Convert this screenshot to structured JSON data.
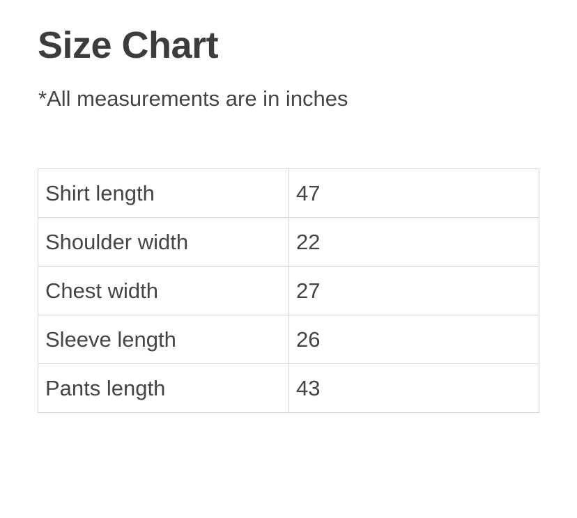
{
  "title": "Size Chart",
  "note": "*All measurements are in inches",
  "rows": [
    {
      "label": "Shirt length",
      "value": "47"
    },
    {
      "label": "Shoulder width",
      "value": "22"
    },
    {
      "label": "Chest width",
      "value": "27"
    },
    {
      "label": "Sleeve length",
      "value": "26"
    },
    {
      "label": "Pants length",
      "value": "43"
    }
  ]
}
